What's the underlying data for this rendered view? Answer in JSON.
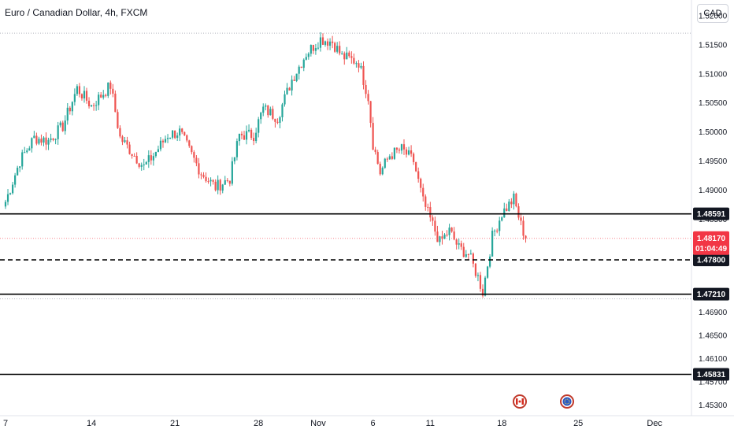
{
  "header": {
    "title": "Euro / Canadian Dollar, 4h, FXCM",
    "currency": "CAD"
  },
  "colors": {
    "up": "#26a69a",
    "down": "#ef5350",
    "line": "#000000",
    "grid": "#cccccc",
    "text": "#131722",
    "current": "#f23645"
  },
  "chart_data": {
    "type": "candlestick",
    "title": "Euro / Canadian Dollar, 4h, FXCM",
    "xlabel": "",
    "ylabel": "",
    "ylim": [
      1.4512,
      1.5227
    ],
    "y_ticks": [
      "1.52000",
      "1.51500",
      "1.51000",
      "1.50500",
      "1.50000",
      "1.49500",
      "1.49000",
      "1.48500",
      "1.47800",
      "1.47200",
      "1.46900",
      "1.46500",
      "1.46100",
      "1.45700",
      "1.45300"
    ],
    "x_ticks": [
      "7",
      "14",
      "21",
      "28",
      "Nov",
      "6",
      "11",
      "18",
      "25",
      "Dec"
    ],
    "x_tick_index": [
      0,
      36,
      71,
      106,
      131,
      154,
      178,
      208,
      240,
      272
    ],
    "horizontal_lines": [
      {
        "label": "1.48591",
        "value": 1.48591,
        "style": "solid"
      },
      {
        "label": "1.47800",
        "value": 1.478,
        "style": "dashed"
      },
      {
        "label": "1.47210",
        "value": 1.4721,
        "style": "solid"
      },
      {
        "label": "1.45831",
        "value": 1.45831,
        "style": "solid"
      }
    ],
    "dotted_levels": [
      1.517,
      1.4713
    ],
    "current_price": {
      "label": "1.48170",
      "countdown": "01:04:49",
      "value": 1.4817
    },
    "anchors": [
      [
        0,
        1.488
      ],
      [
        6,
        1.495
      ],
      [
        12,
        1.499
      ],
      [
        18,
        1.4985
      ],
      [
        24,
        1.501
      ],
      [
        30,
        1.5075
      ],
      [
        36,
        1.5045
      ],
      [
        44,
        1.508
      ],
      [
        48,
        1.499
      ],
      [
        54,
        1.496
      ],
      [
        58,
        1.494
      ],
      [
        62,
        1.496
      ],
      [
        68,
        1.4995
      ],
      [
        73,
        1.5
      ],
      [
        78,
        1.496
      ],
      [
        82,
        1.493
      ],
      [
        88,
        1.4905
      ],
      [
        94,
        1.492
      ],
      [
        98,
        1.4995
      ],
      [
        104,
        1.4995
      ],
      [
        108,
        1.504
      ],
      [
        114,
        1.5025
      ],
      [
        120,
        1.509
      ],
      [
        126,
        1.5135
      ],
      [
        132,
        1.516
      ],
      [
        137,
        1.5155
      ],
      [
        141,
        1.513
      ],
      [
        148,
        1.512
      ],
      [
        152,
        1.506
      ],
      [
        154,
        1.498
      ],
      [
        157,
        1.493
      ],
      [
        161,
        1.496
      ],
      [
        166,
        1.497
      ],
      [
        171,
        1.495
      ],
      [
        175,
        1.488
      ],
      [
        178,
        1.485
      ],
      [
        182,
        1.481
      ],
      [
        186,
        1.483
      ],
      [
        190,
        1.48
      ],
      [
        194,
        1.479
      ],
      [
        198,
        1.475
      ],
      [
        200,
        1.4725
      ],
      [
        204,
        1.482
      ],
      [
        208,
        1.486
      ],
      [
        213,
        1.4885
      ],
      [
        216,
        1.484
      ],
      [
        218,
        1.4817
      ]
    ]
  }
}
